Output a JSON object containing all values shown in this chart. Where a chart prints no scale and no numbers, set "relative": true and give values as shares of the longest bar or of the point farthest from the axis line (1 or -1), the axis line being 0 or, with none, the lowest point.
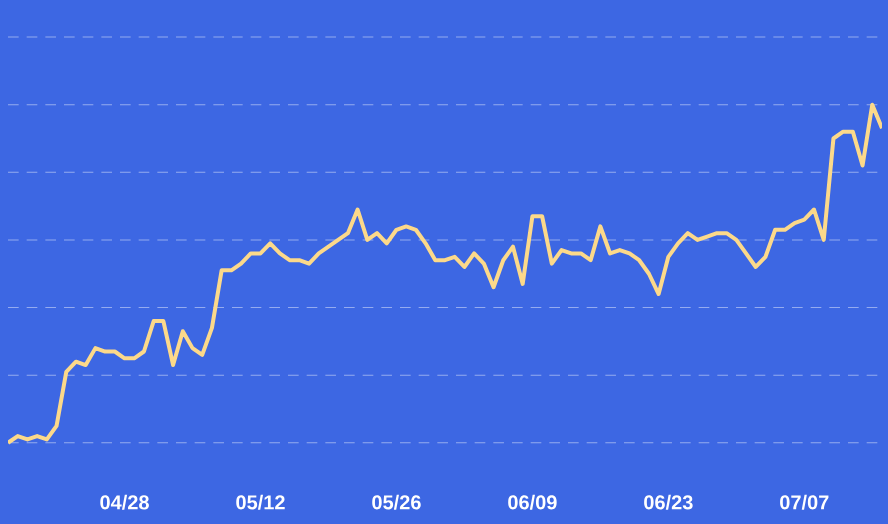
{
  "chart_data": {
    "type": "line",
    "relative": true,
    "grid": "y",
    "color": "#fcd98a",
    "categories": [
      null,
      null,
      null,
      null,
      null,
      null,
      null,
      null,
      null,
      null,
      null,
      null,
      "04/28",
      null,
      null,
      null,
      null,
      null,
      null,
      null,
      null,
      null,
      null,
      null,
      null,
      null,
      "05/12",
      null,
      null,
      null,
      null,
      null,
      null,
      null,
      null,
      null,
      null,
      null,
      null,
      null,
      "05/26",
      null,
      null,
      null,
      null,
      null,
      null,
      null,
      null,
      null,
      null,
      null,
      null,
      null,
      "06/09",
      null,
      null,
      null,
      null,
      null,
      null,
      null,
      null,
      null,
      null,
      null,
      null,
      null,
      "06/23",
      null,
      null,
      null,
      null,
      null,
      null,
      null,
      null,
      null,
      null,
      null,
      null,
      null,
      "07/07",
      null,
      null,
      null,
      null,
      null,
      null,
      null,
      null
    ],
    "values": [
      0,
      0.02,
      0.01,
      0.02,
      0.01,
      0.05,
      0.21,
      0.24,
      0.23,
      0.28,
      0.27,
      0.27,
      0.25,
      0.25,
      0.27,
      0.36,
      0.36,
      0.23,
      0.33,
      0.28,
      0.26,
      0.34,
      0.51,
      0.51,
      0.53,
      0.56,
      0.56,
      0.59,
      0.56,
      0.54,
      0.54,
      0.53,
      0.56,
      0.58,
      0.6,
      0.62,
      0.69,
      0.6,
      0.62,
      0.59,
      0.63,
      0.64,
      0.63,
      0.59,
      0.54,
      0.54,
      0.55,
      0.52,
      0.56,
      0.53,
      0.46,
      0.54,
      0.58,
      0.47,
      0.67,
      0.67,
      0.53,
      0.57,
      0.56,
      0.56,
      0.54,
      0.64,
      0.56,
      0.57,
      0.56,
      0.54,
      0.5,
      0.44,
      0.55,
      0.59,
      0.62,
      0.6,
      0.61,
      0.62,
      0.62,
      0.6,
      0.56,
      0.52,
      0.55,
      0.63,
      0.63,
      0.65,
      0.66,
      0.69,
      0.6,
      0.9,
      0.92,
      0.92,
      0.82,
      1,
      0.93
    ]
  }
}
